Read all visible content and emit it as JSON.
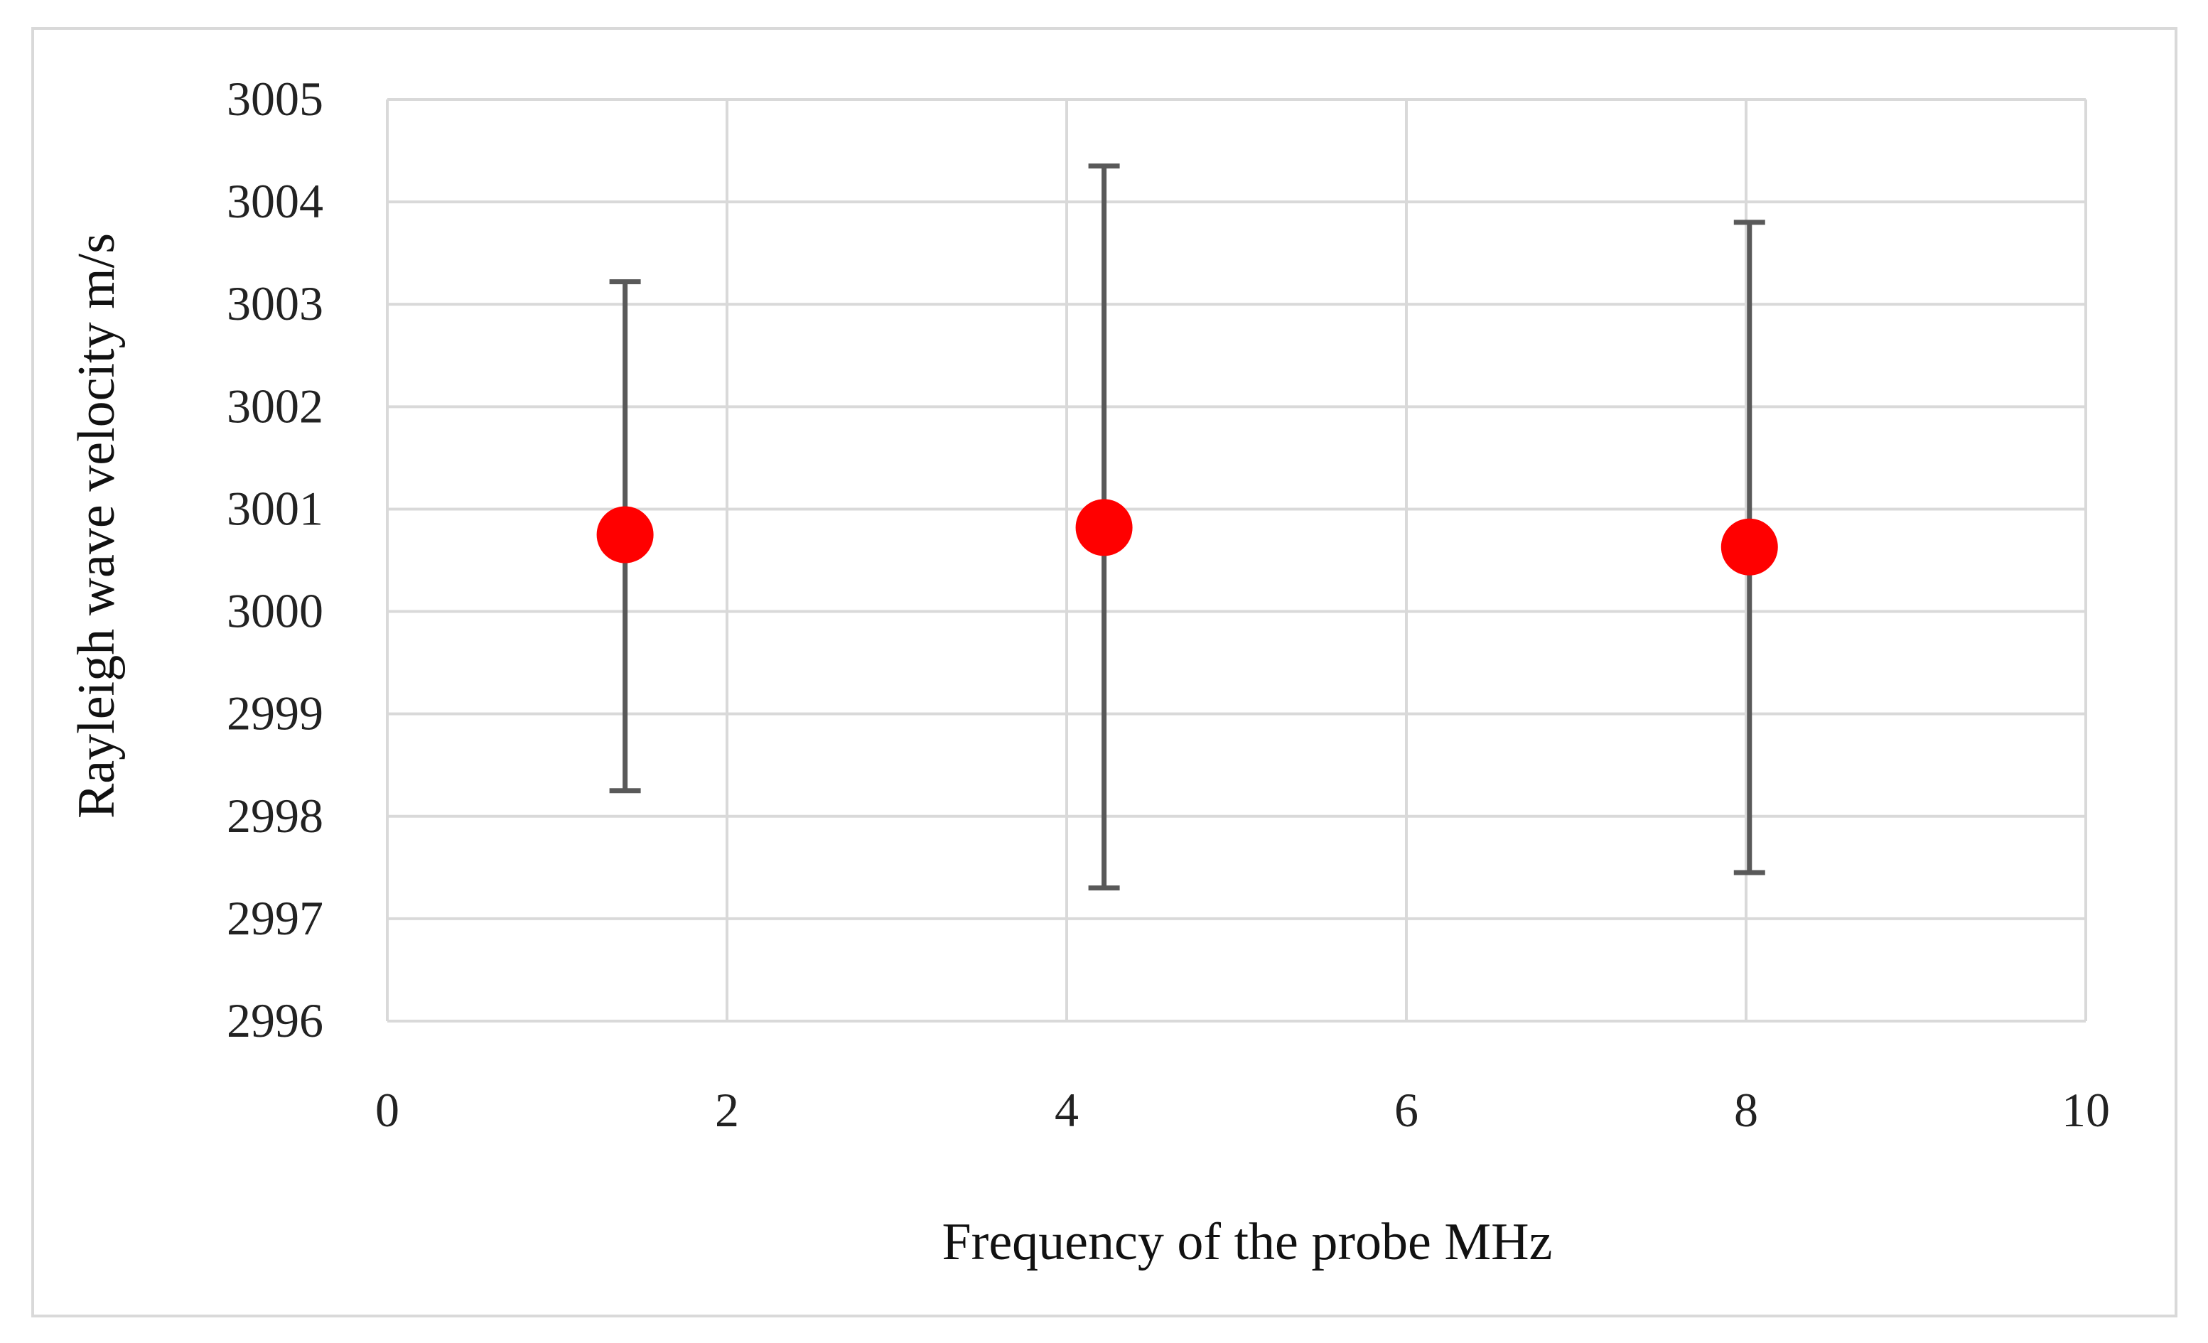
{
  "chart_data": {
    "type": "scatter",
    "title": "",
    "xlabel": "Frequency of the probe MHz",
    "ylabel": "Rayleigh wave velocity m/s",
    "xlim": [
      0,
      10
    ],
    "ylim": [
      2996,
      3005
    ],
    "x_ticks": [
      "0",
      "2",
      "4",
      "6",
      "8",
      "10"
    ],
    "y_ticks": [
      "2996",
      "2997",
      "2998",
      "2999",
      "3000",
      "3001",
      "3002",
      "3003",
      "3004",
      "3005"
    ],
    "grid": true,
    "legend": "none",
    "series": [
      {
        "points": [
          {
            "x": 1.4,
            "y": 3000.75,
            "err_low": 2998.25,
            "err_high": 3003.22
          },
          {
            "x": 4.22,
            "y": 3000.82,
            "err_low": 2997.3,
            "err_high": 3004.35
          },
          {
            "x": 8.02,
            "y": 3000.63,
            "err_low": 2997.45,
            "err_high": 3003.8
          }
        ]
      }
    ],
    "colors": {
      "marker": "#ff0000",
      "error_bar": "#595959",
      "grid": "#d9d9d9",
      "frame": "#d9d9d9"
    }
  }
}
